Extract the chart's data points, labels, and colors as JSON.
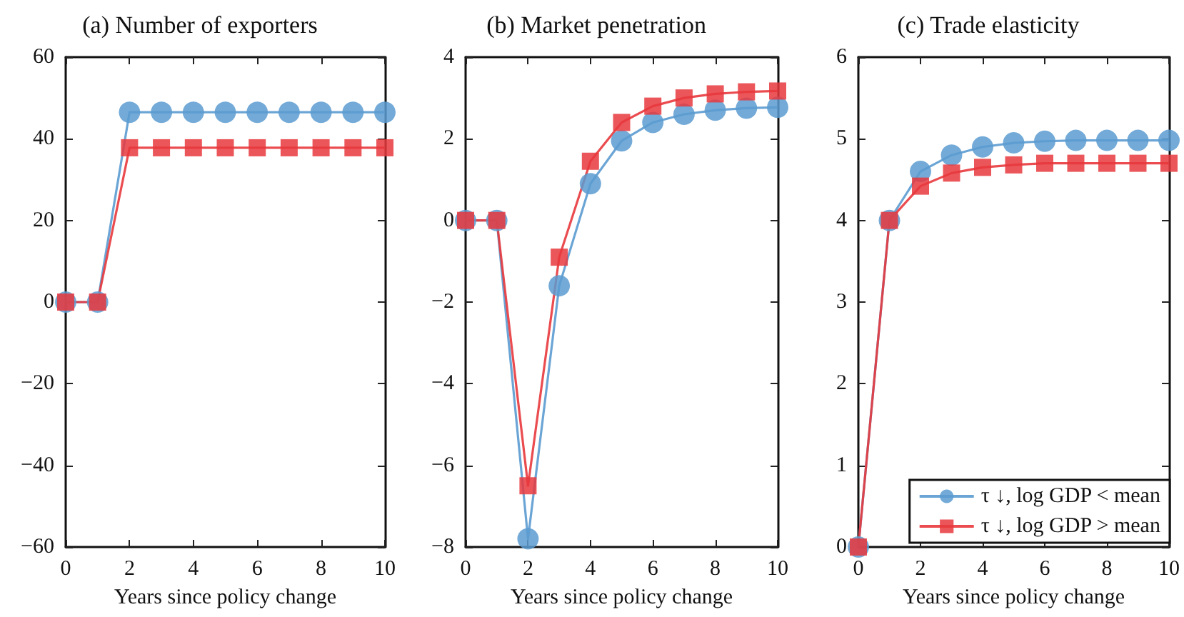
{
  "chart_data": [
    {
      "type": "line",
      "title": "(a) Number of exporters",
      "xlabel": "Years since policy change",
      "x": [
        0,
        1,
        2,
        3,
        4,
        5,
        6,
        7,
        8,
        9,
        10
      ],
      "xlim": [
        0,
        10
      ],
      "xticks": [
        0,
        2,
        4,
        6,
        8,
        10
      ],
      "ylim": [
        -60,
        60
      ],
      "yticks": [
        -60,
        -40,
        -20,
        0,
        20,
        40,
        60
      ],
      "grid": false,
      "legend": false,
      "series": [
        {
          "color": "#5b9bd0",
          "marker": "circle",
          "values": [
            0,
            0,
            46.5,
            46.5,
            46.5,
            46.5,
            46.5,
            46.5,
            46.5,
            46.5,
            46.5
          ]
        },
        {
          "color": "#e8383d",
          "marker": "square",
          "values": [
            0,
            0,
            37.8,
            37.8,
            37.8,
            37.8,
            37.8,
            37.8,
            37.8,
            37.8,
            37.8
          ]
        }
      ]
    },
    {
      "type": "line",
      "title": "(b) Market penetration",
      "xlabel": "Years since policy change",
      "x": [
        0,
        1,
        2,
        3,
        4,
        5,
        6,
        7,
        8,
        9,
        10
      ],
      "xlim": [
        0,
        10
      ],
      "xticks": [
        0,
        2,
        4,
        6,
        8,
        10
      ],
      "ylim": [
        -8,
        4
      ],
      "yticks": [
        -8,
        -6,
        -4,
        -2,
        0,
        2,
        4
      ],
      "grid": false,
      "legend": false,
      "series": [
        {
          "color": "#5b9bd0",
          "marker": "circle",
          "values": [
            0,
            0,
            -7.8,
            -1.6,
            0.9,
            1.95,
            2.4,
            2.6,
            2.7,
            2.75,
            2.77
          ]
        },
        {
          "color": "#e8383d",
          "marker": "square",
          "values": [
            0,
            0,
            -6.5,
            -0.9,
            1.45,
            2.4,
            2.8,
            3.0,
            3.1,
            3.15,
            3.17
          ]
        }
      ]
    },
    {
      "type": "line",
      "title": "(c) Trade elasticity",
      "xlabel": "Years since policy change",
      "x": [
        0,
        1,
        2,
        3,
        4,
        5,
        6,
        7,
        8,
        9,
        10
      ],
      "xlim": [
        0,
        10
      ],
      "xticks": [
        0,
        2,
        4,
        6,
        8,
        10
      ],
      "ylim": [
        0,
        6
      ],
      "yticks": [
        0,
        1,
        2,
        3,
        4,
        5,
        6
      ],
      "grid": false,
      "legend": "bottom right",
      "series": [
        {
          "name": "τ ↓, log GDP < mean",
          "color": "#5b9bd0",
          "marker": "circle",
          "values": [
            0,
            4,
            4.6,
            4.8,
            4.9,
            4.95,
            4.97,
            4.98,
            4.98,
            4.98,
            4.98
          ]
        },
        {
          "name": "τ ↓, log GDP > mean",
          "color": "#e8383d",
          "marker": "square",
          "values": [
            0,
            4,
            4.42,
            4.58,
            4.65,
            4.68,
            4.7,
            4.7,
            4.7,
            4.7,
            4.7
          ]
        }
      ]
    }
  ]
}
